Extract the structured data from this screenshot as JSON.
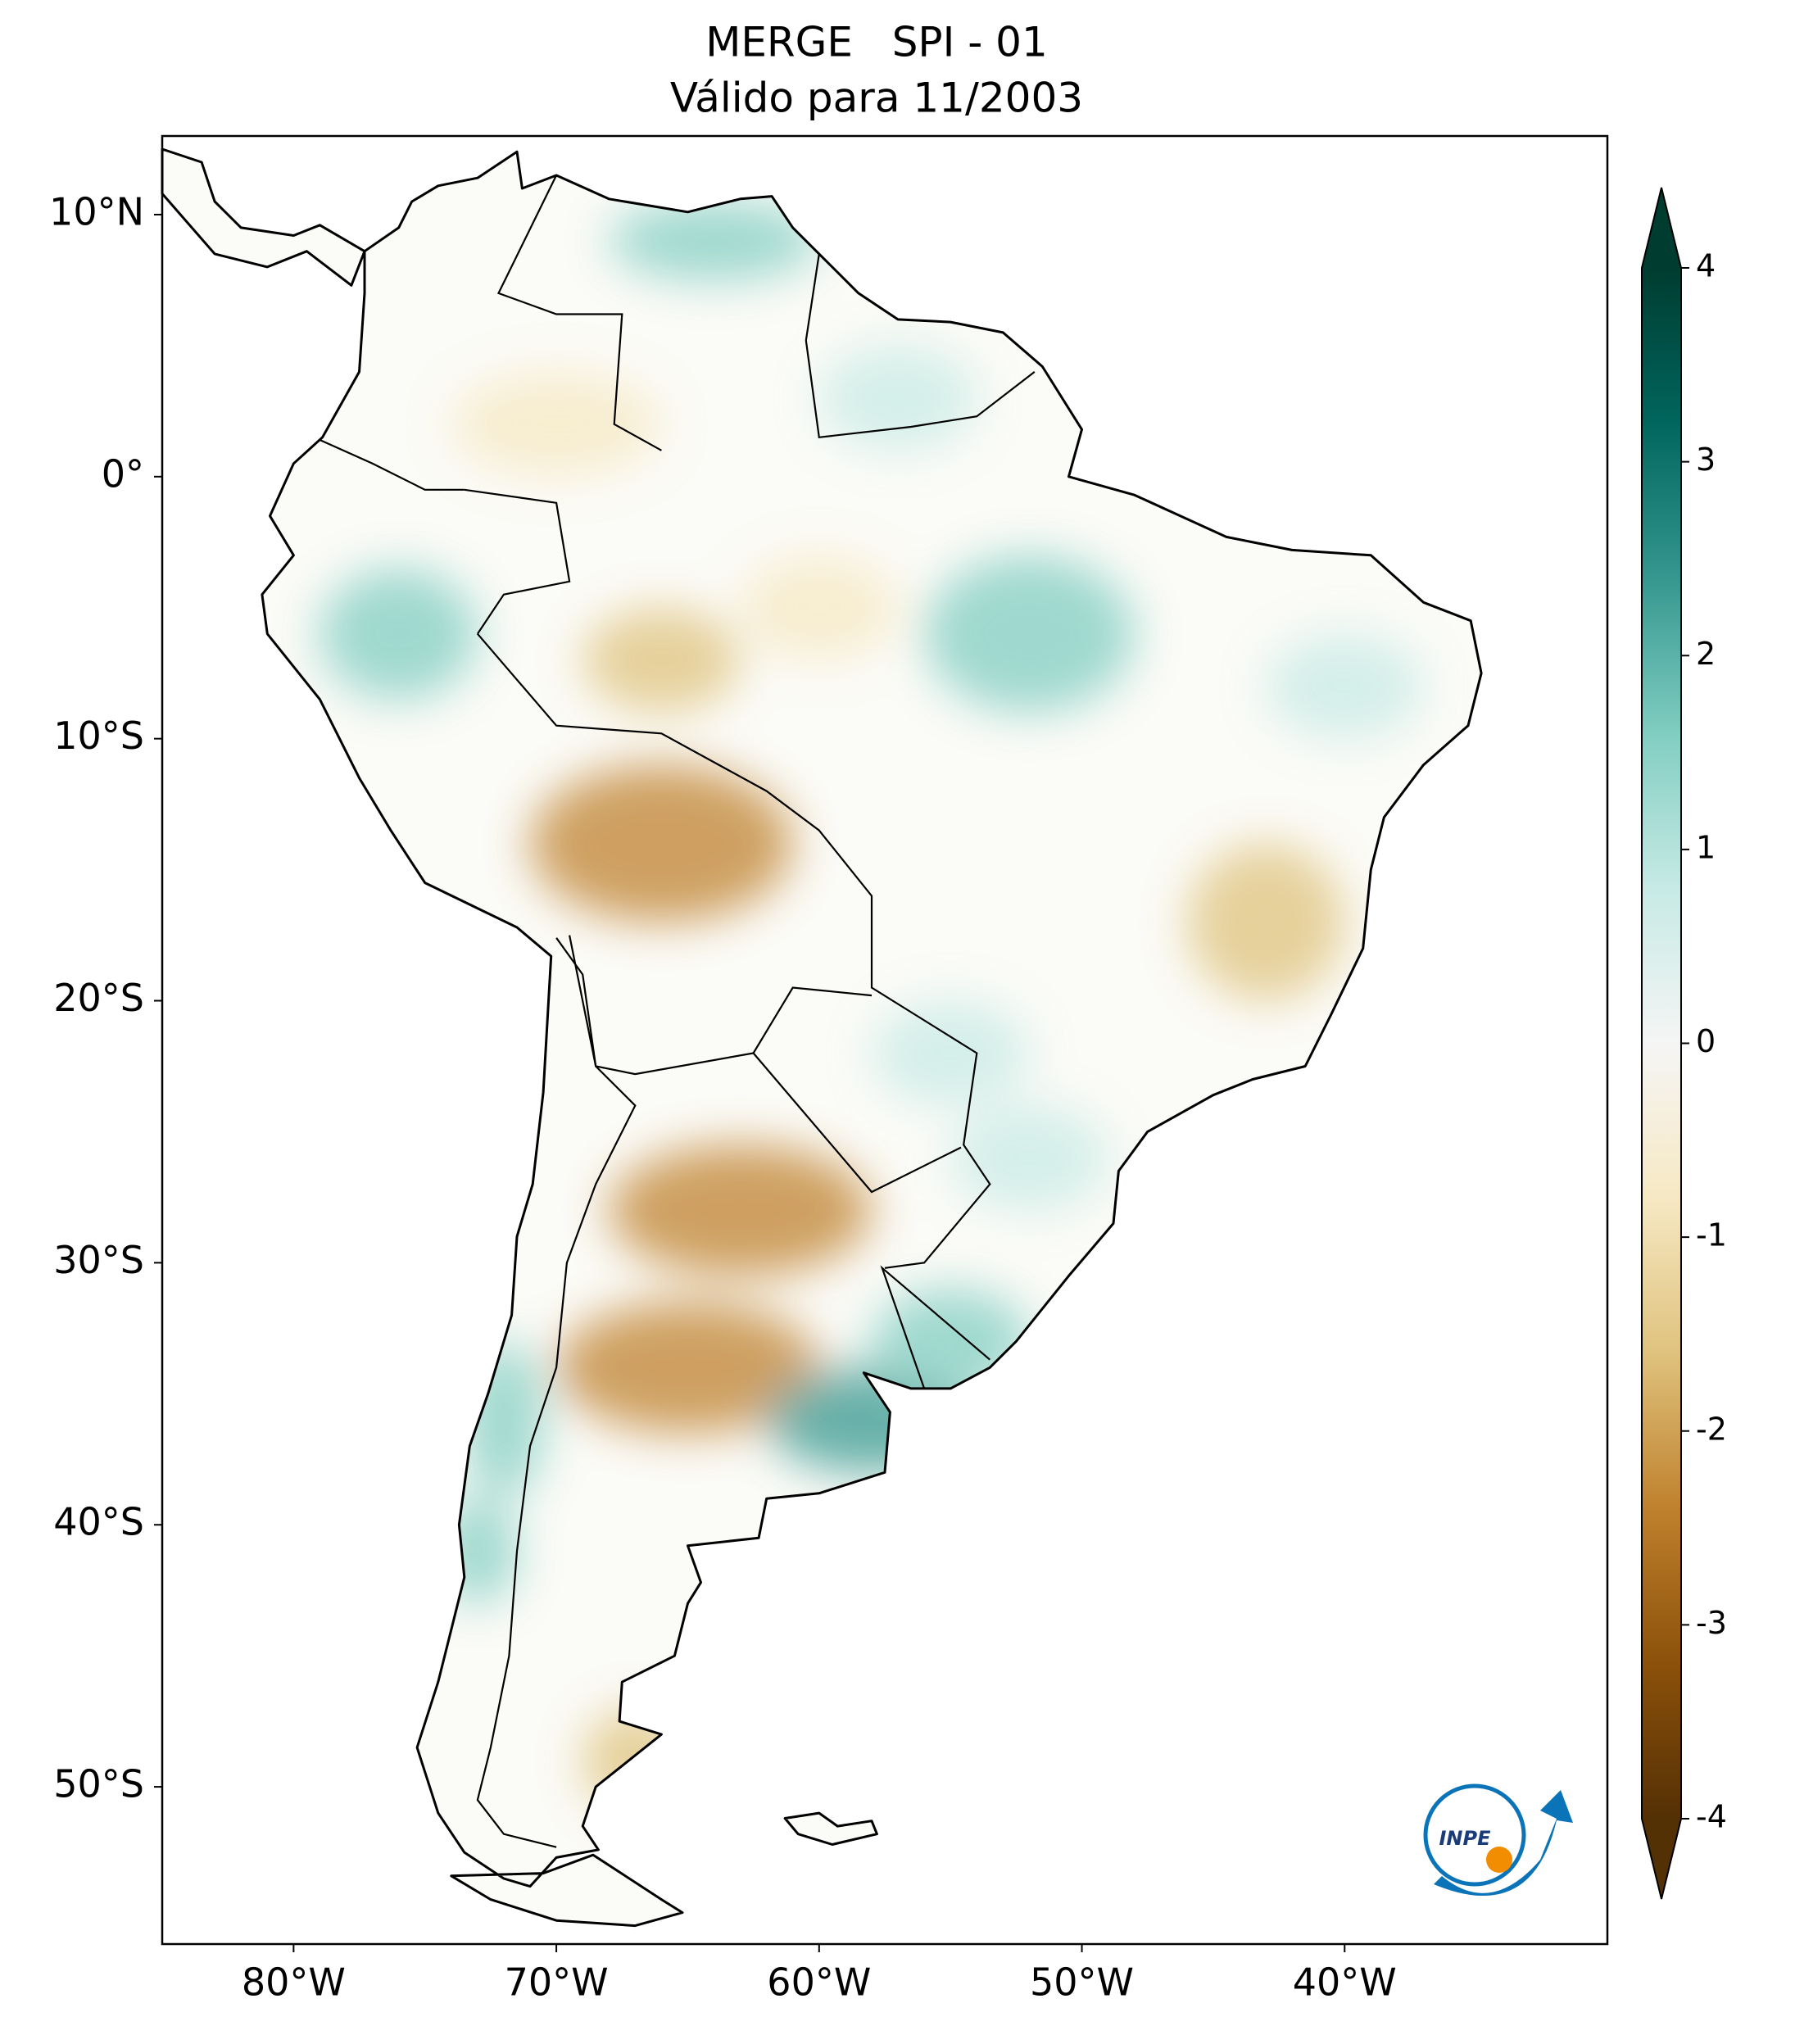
{
  "chart_data": {
    "type": "map",
    "title": "MERGE   SPI - 01",
    "subtitle": "Válido para 11/2003",
    "xlim": [
      -85,
      -30
    ],
    "ylim": [
      -56,
      13
    ],
    "xticks": [
      {
        "value": -80,
        "label": "80°W"
      },
      {
        "value": -70,
        "label": "70°W"
      },
      {
        "value": -60,
        "label": "60°W"
      },
      {
        "value": -50,
        "label": "50°W"
      },
      {
        "value": -40,
        "label": "40°W"
      }
    ],
    "yticks": [
      {
        "value": 10,
        "label": "10°N"
      },
      {
        "value": 0,
        "label": "0°"
      },
      {
        "value": -10,
        "label": "10°S"
      },
      {
        "value": -20,
        "label": "20°S"
      },
      {
        "value": -30,
        "label": "30°S"
      },
      {
        "value": -40,
        "label": "40°S"
      },
      {
        "value": -50,
        "label": "50°S"
      }
    ],
    "colorbar": {
      "lim": [
        -4,
        4
      ],
      "ticks": [
        -4,
        -3,
        -2,
        -1,
        0,
        1,
        2,
        3,
        4
      ],
      "colors": [
        "#543005",
        "#8c510a",
        "#bf812d",
        "#dfc27d",
        "#f6e8c3",
        "#f5f5f5",
        "#c7eae5",
        "#80cdc1",
        "#35978f",
        "#01665e",
        "#003c30"
      ],
      "extend": "both"
    }
  },
  "logo": "INPE"
}
